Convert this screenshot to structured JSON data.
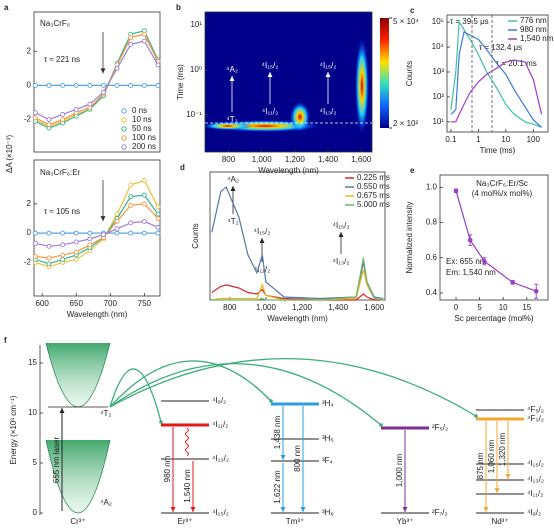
{
  "chart_data": [
    {
      "panel": "a",
      "type": "line",
      "markers": true,
      "ylabel": "ΔA (×10⁻³)",
      "annotations": [
        "Na₃CrF₆",
        "τ ≈ 221 ns"
      ],
      "x": [
        590,
        610,
        630,
        650,
        670,
        690,
        710,
        730,
        750,
        770
      ],
      "xlim": [
        588,
        773
      ],
      "ylim": [
        -3.9,
        4.3
      ],
      "yticks": [
        -2,
        0,
        2
      ],
      "legend": "lower right",
      "series": [
        {
          "name": "0 ns",
          "color": "#5ba3e0",
          "values": [
            0,
            0,
            0,
            0,
            0,
            0,
            0,
            0,
            0,
            0
          ]
        },
        {
          "name": "10 ns",
          "color": "#e8c13c",
          "values": [
            -2.0,
            -2.4,
            -2.1,
            -1.7,
            -1.4,
            -0.6,
            1.2,
            2.8,
            3.0,
            1.4
          ]
        },
        {
          "name": "50 ns",
          "color": "#3db38a",
          "values": [
            -2.1,
            -2.5,
            -2.2,
            -1.8,
            -1.4,
            -0.6,
            1.3,
            3.0,
            3.2,
            1.5
          ]
        },
        {
          "name": "100 ns",
          "color": "#f2994a",
          "values": [
            -1.9,
            -2.3,
            -2.0,
            -1.6,
            -1.3,
            -0.5,
            1.2,
            2.8,
            3.0,
            1.4
          ]
        },
        {
          "name": "200 ns",
          "color": "#9b7fd4",
          "values": [
            -1.6,
            -2.0,
            -1.7,
            -1.4,
            -1.1,
            -0.4,
            1.0,
            2.4,
            2.6,
            1.2
          ]
        }
      ]
    },
    {
      "type": "line",
      "markers": true,
      "xlabel": "Wavelength (nm)",
      "annotations": [
        "Na₃CrF₆:Er",
        "τ ≈ 105 ns"
      ],
      "x": [
        590,
        610,
        630,
        650,
        670,
        690,
        710,
        730,
        750,
        770
      ],
      "xlim": [
        588,
        773
      ],
      "xticks": [
        600,
        650,
        700,
        750
      ],
      "ylim": [
        -4.3,
        5.0
      ],
      "yticks": [
        -2,
        0,
        2
      ],
      "series": [
        {
          "color": "#5ba3e0",
          "values": [
            0,
            0,
            0,
            0,
            0,
            0,
            0,
            0,
            0,
            0
          ]
        },
        {
          "color": "#e8c13c",
          "values": [
            -2.0,
            -2.3,
            -2.0,
            -1.8,
            -1.2,
            -0.4,
            1.3,
            3.3,
            3.6,
            1.8
          ]
        },
        {
          "color": "#3db38a",
          "values": [
            -1.8,
            -2.1,
            -1.8,
            -1.5,
            -1.0,
            -0.3,
            1.0,
            2.5,
            2.6,
            1.3
          ]
        },
        {
          "color": "#f2994a",
          "values": [
            -1.6,
            -1.7,
            -1.5,
            -1.3,
            -0.8,
            -0.3,
            0.8,
            1.9,
            2.0,
            1.0
          ]
        },
        {
          "color": "#9b7fd4",
          "values": [
            -0.7,
            -0.9,
            -0.8,
            -0.6,
            -0.4,
            -0.1,
            0.3,
            0.7,
            0.8,
            0.4
          ]
        }
      ]
    },
    {
      "panel": "b",
      "type": "heatmap",
      "xlabel": "Wavelength (nm)",
      "ylabel": "Time (ms)",
      "log_y": true,
      "xlim": [
        658,
        1665
      ],
      "xticks": [
        800,
        {
          "value": 1000,
          "label": "1,000"
        },
        {
          "value": 1200,
          "label": "1,200"
        },
        {
          "value": 1400,
          "label": "1,400"
        },
        {
          "value": 1600,
          "label": "1,600"
        }
      ],
      "ylim": [
        0.015,
        19.5
      ],
      "yticks": [
        {
          "value": 0.1,
          "label": "10⁻¹"
        },
        {
          "value": 1,
          "label": "10⁰"
        },
        {
          "value": 10,
          "label": "10¹"
        }
      ],
      "colorbar": [
        {
          "value": 200,
          "label": "2 × 10²"
        },
        {
          "value": 50000,
          "label": "5 × 10⁴"
        }
      ],
      "transitions": [
        {
          "upper": "⁴A₂",
          "lower": "⁴T₂"
        },
        {
          "upper": "⁴I₁₅/₂",
          "lower": "⁴I₁₁/₂"
        },
        {
          "upper": "⁴I₁₅/₂",
          "lower": "⁴I₁₃/₂"
        }
      ]
    },
    {
      "panel": "c",
      "type": "line",
      "xlabel": "Time (ms)",
      "ylabel": "Counts",
      "log_x": true,
      "log_y": true,
      "legend": "upper right",
      "x": [
        0.1,
        0.15,
        0.2,
        0.3,
        0.5,
        1,
        2,
        5,
        10,
        20,
        50,
        100,
        200
      ],
      "xlim": [
        0.072,
        343
      ],
      "xticks": [
        0.1,
        1,
        10,
        100
      ],
      "ylim": [
        3.9,
        193000
      ],
      "yticks": [
        {
          "value": 10,
          "label": "10¹"
        },
        {
          "value": 100,
          "label": "10²"
        },
        {
          "value": 1000,
          "label": "10³"
        },
        {
          "value": 10000,
          "label": "10⁴"
        },
        {
          "value": 100000,
          "label": "10⁵"
        }
      ],
      "annotations": [
        "τ = 39.5 μs",
        "τ = 132.4 μs",
        "τ = 20.1 ms"
      ],
      "series": [
        {
          "name": "776 nm",
          "color": "#3dbfa8",
          "values": [
            30,
            1000,
            100000,
            50000,
            20000,
            5000,
            1000,
            200,
            50,
            20,
            10,
            8,
            6
          ]
        },
        {
          "name": "980 nm",
          "color": "#3a7bd5",
          "values": [
            20,
            30,
            5000,
            40000,
            30000,
            20000,
            8000,
            2000,
            800,
            200,
            40,
            12,
            6
          ]
        },
        {
          "name": "1,540 nm",
          "color": "#a03bc9",
          "values": [
            10,
            10,
            20,
            50,
            150,
            400,
            800,
            1500,
            2500,
            3000,
            2500,
            500,
            20
          ]
        }
      ]
    },
    {
      "panel": "d",
      "type": "line",
      "xlabel": "Wavelength (nm)",
      "ylabel": "Counts",
      "legend": "upper right",
      "x": [
        700,
        750,
        780,
        850,
        900,
        950,
        980,
        1000,
        1100,
        1300,
        1500,
        1540,
        1560,
        1600,
        1650
      ],
      "xlim": [
        690,
        1660
      ],
      "xticks": [
        800,
        {
          "value": 1000,
          "label": "1,000"
        },
        {
          "value": 1200,
          "label": "1,200"
        },
        {
          "value": 1400,
          "label": "1,400"
        },
        {
          "value": 1600,
          "label": "1,600"
        }
      ],
      "ylim": [
        0,
        0.85
      ],
      "transitions": [
        {
          "upper": "⁴A₂",
          "lower": "⁴T₂"
        },
        {
          "upper": "⁴I₁₅/₂",
          "lower": "⁴I₁₁/₂"
        },
        {
          "upper": "⁴I₁₅/₂",
          "lower": "⁴I₁₃/₂"
        }
      ],
      "series": [
        {
          "name": "0.225 ms",
          "color": "#d62728",
          "values": [
            0.05,
            0.09,
            0.1,
            0.08,
            0.05,
            0.04,
            0.07,
            0.03,
            0.01,
            0,
            0,
            0.04,
            0.02,
            0,
            0
          ]
        },
        {
          "name": "0.550 ms",
          "color": "#5577a8",
          "values": [
            0.45,
            0.72,
            0.75,
            0.55,
            0.3,
            0.18,
            0.3,
            0.12,
            0.02,
            0.01,
            0.02,
            0.25,
            0.12,
            0.02,
            0.01
          ]
        },
        {
          "name": "0.675 ms",
          "color": "#e6b820",
          "values": [
            0,
            0.01,
            0.01,
            0.01,
            0.01,
            0.01,
            0.1,
            0.03,
            0,
            0,
            0.01,
            0.2,
            0.1,
            0.01,
            0
          ]
        },
        {
          "name": "5.000 ms",
          "color": "#6cb86c",
          "values": [
            0,
            0,
            0,
            0,
            0,
            0,
            0.01,
            0,
            0,
            0,
            0.02,
            0.28,
            0.12,
            0.01,
            0
          ]
        }
      ]
    },
    {
      "panel": "e",
      "type": "errorbar",
      "title": "Na₃CrF₆:Er/Sc",
      "subtitle": "(4 mol%/x mol%)",
      "xlabel": "Sc percentage (mol%)",
      "ylabel": "Normalized intensity",
      "annotations": [
        "Ex: 655 nm",
        "Em: 1,540 nm"
      ],
      "color": "#9b3fc4",
      "x": [
        0,
        3,
        6,
        12,
        17
      ],
      "values": [
        0.98,
        0.7,
        0.58,
        0.46,
        0.41
      ],
      "errors": [
        0.01,
        0.03,
        0.02,
        0.01,
        0.04
      ],
      "xlim": [
        -3.4,
        19.5
      ],
      "xticks": [
        0,
        5,
        10,
        15
      ],
      "ylim": [
        0.36,
        1.07
      ],
      "yticks": [
        0.4,
        0.6,
        0.8,
        {
          "value": 1.0,
          "label": "1.0"
        }
      ]
    },
    {
      "panel": "f",
      "type": "energy-levels",
      "ylabel": "Energy (×10³ cm⁻¹)",
      "ylim": [
        -0.2,
        16.8
      ],
      "yticks": [
        0,
        5,
        10,
        15
      ],
      "ions": [
        {
          "name": "Cr³⁺",
          "color": "#3cae7a",
          "levels": [
            {
              "label": "⁴T₂",
              "value": 10.6
            },
            {
              "label": "⁴A₂",
              "value": 0
            }
          ],
          "transitions": [
            "655 nm laser"
          ]
        },
        {
          "name": "Er³⁺",
          "color": "#e31a1c",
          "levels": [
            {
              "label": "⁴I₉/₂",
              "value": 11.2
            },
            {
              "label": "⁴I₁₁/₂",
              "value": 8.8
            },
            {
              "label": "⁴I₁₃/₂",
              "value": 5.4
            },
            {
              "label": "⁴I₁₅/₂",
              "value": 0
            }
          ],
          "transitions": [
            "980 nm",
            "1,540 nm"
          ]
        },
        {
          "name": "Tm³⁺",
          "color": "#2b9fd9",
          "levels": [
            {
              "label": "³H₄",
              "value": 10.9
            },
            {
              "label": "³H₅",
              "value": 7.4
            },
            {
              "label": "³F₄",
              "value": 5.2
            },
            {
              "label": "³H₆",
              "value": 0
            }
          ],
          "transitions": [
            "1,438 nm",
            "1,622 nm",
            "800 nm"
          ]
        },
        {
          "name": "Yb³⁺",
          "color": "#7b3294",
          "levels": [
            {
              "label": "²F₅/₂",
              "value": 8.5
            },
            {
              "label": "²F₇/₂",
              "value": 0
            }
          ],
          "transitions": [
            "1,000 nm"
          ]
        },
        {
          "name": "Nd³⁺",
          "color": "#f0a830",
          "levels": [
            {
              "label": "⁴F₅/₂",
              "value": 10.3
            },
            {
              "label": "⁴F₃/₂",
              "value": 9.4
            },
            {
              "label": "⁴I₁₅/₂",
              "value": 4.9
            },
            {
              "label": "⁴I₁₃/₂",
              "value": 3.3
            },
            {
              "label": "⁴I₁₁/₂",
              "value": 1.9
            },
            {
              "label": "⁴I₉/₂",
              "value": 0
            }
          ],
          "transitions": [
            "875 nm",
            "1,060 nm",
            "1,320 nm"
          ]
        }
      ]
    }
  ]
}
